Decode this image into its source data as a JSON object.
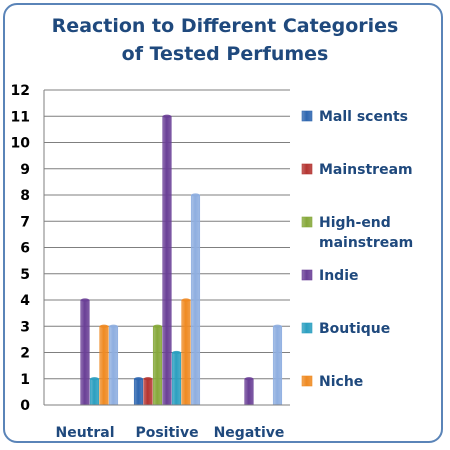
{
  "chart_data": {
    "type": "bar",
    "title": "Reaction to Different Categories of Tested Perfumes",
    "categories": [
      "Neutral",
      "Positive",
      "Negative"
    ],
    "ylim": [
      0,
      12
    ],
    "yticks": [
      0,
      1,
      2,
      3,
      4,
      5,
      6,
      7,
      8,
      9,
      10,
      11,
      12
    ],
    "grid": true,
    "legend_position": "right",
    "series": [
      {
        "name": "Mall scents",
        "color": "#2e66b0",
        "values": [
          0,
          1,
          0
        ]
      },
      {
        "name": "Mainstream",
        "color": "#b43431",
        "values": [
          0,
          1,
          0
        ]
      },
      {
        "name": "High-end mainstream",
        "legend_lines": [
          "High-end",
          "mainstream"
        ],
        "color": "#86a83a",
        "values": [
          0,
          3,
          0
        ]
      },
      {
        "name": "Indie",
        "color": "#6a3f96",
        "values": [
          4,
          11,
          1
        ]
      },
      {
        "name": "Boutique",
        "color": "#2b9fc0",
        "values": [
          1,
          2,
          0
        ]
      },
      {
        "name": "Niche",
        "color": "#ef8a22",
        "values": [
          3,
          4,
          0
        ]
      },
      {
        "name": "",
        "color": "#8eaee0",
        "values": [
          3,
          8,
          3
        ]
      }
    ]
  }
}
